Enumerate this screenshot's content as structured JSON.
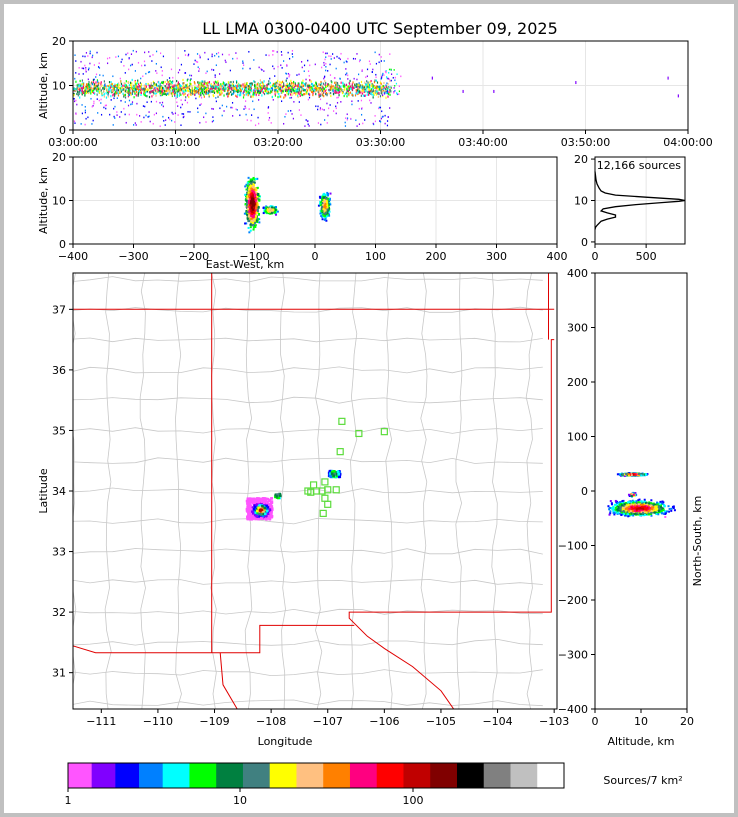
{
  "title": "LL LMA 0300-0400 UTC September 09, 2025",
  "colorbar": {
    "label": "Sources/7 km²",
    "ticks": [
      "1",
      "10",
      "100"
    ],
    "colors": [
      "#ff55ff",
      "#8000ff",
      "#0000ff",
      "#0080ff",
      "#00ffff",
      "#00ff00",
      "#008040",
      "#408080",
      "#ffff00",
      "#ffc080",
      "#ff8000",
      "#ff0080",
      "#ff0000",
      "#c00000",
      "#800000",
      "#000000",
      "#808080",
      "#c0c0c0",
      "#ffffff"
    ]
  },
  "panels": {
    "time_height": {
      "ylabel": "Altitude, km",
      "yticks": [
        "0",
        "10",
        "20"
      ],
      "xticks": [
        "03:00:00",
        "03:10:00",
        "03:20:00",
        "03:30:00",
        "03:40:00",
        "03:50:00",
        "04:00:00"
      ]
    },
    "ew_height": {
      "ylabel": "Altitude, km",
      "xlabel": "East-West, km",
      "yticks": [
        "0",
        "10",
        "20"
      ],
      "xticks": [
        "−400",
        "−300",
        "−200",
        "−100",
        "0",
        "100",
        "200",
        "300",
        "400"
      ]
    },
    "histogram": {
      "annotation": "12,166 sources",
      "yticks": [
        "0",
        "10",
        "20"
      ],
      "xticks": [
        "0",
        "500"
      ]
    },
    "map": {
      "ylabel": "Latitude",
      "xlabel": "Longitude",
      "yticks": [
        "31",
        "32",
        "33",
        "34",
        "35",
        "36",
        "37"
      ],
      "xticks": [
        "−111",
        "−110",
        "−109",
        "−108",
        "−107",
        "−106",
        "−105",
        "−104",
        "−103"
      ]
    },
    "ns_height": {
      "ylabel": "North-South, km",
      "xlabel": "Altitude, km",
      "yticks": [
        "400",
        "300",
        "200",
        "100",
        "0",
        "−100",
        "−200",
        "−300",
        "−400"
      ],
      "xticks": [
        "0",
        "10",
        "20"
      ]
    }
  },
  "chart_data": [
    {
      "type": "scatter",
      "name": "time-height",
      "xlabel": "",
      "ylabel": "Altitude, km",
      "xlim": [
        "03:00:00",
        "04:00:00"
      ],
      "ylim": [
        0,
        20
      ],
      "active_time_span": [
        "03:00:00",
        "03:31:00"
      ],
      "core_altitude_km": [
        7,
        12
      ],
      "isolated_sources": [
        [
          "03:35:00",
          12
        ],
        [
          "03:38:00",
          9
        ],
        [
          "03:41:00",
          9
        ],
        [
          "03:49:00",
          11
        ],
        [
          "03:58:00",
          12
        ],
        [
          "03:59:00",
          8
        ]
      ]
    },
    {
      "type": "heatmap",
      "name": "east-west vs altitude",
      "xlabel": "East-West, km",
      "ylabel": "Altitude, km",
      "xlim": [
        -400,
        400
      ],
      "ylim": [
        0,
        20
      ],
      "clusters": [
        {
          "x_range": [
            -125,
            -90
          ],
          "alt_range": [
            1,
            19
          ],
          "peak": [
            -105,
            9.5
          ]
        },
        {
          "x_range": [
            -90,
            -55
          ],
          "alt_range": [
            6,
            9
          ],
          "peak": [
            -75,
            8
          ]
        },
        {
          "x_range": [
            3,
            30
          ],
          "alt_range": [
            3,
            12
          ],
          "peak": [
            15,
            9
          ]
        }
      ]
    },
    {
      "type": "line",
      "name": "altitude histogram",
      "annotation": "12,166 sources",
      "xlim": [
        0,
        880
      ],
      "ylim": [
        0,
        21
      ],
      "x": [
        0,
        5,
        20,
        60,
        120,
        200,
        200,
        120,
        60,
        80,
        200,
        400,
        650,
        820,
        880,
        820,
        500,
        200,
        100,
        60,
        40,
        20,
        10,
        5,
        0
      ],
      "y": [
        3,
        3.5,
        4,
        5,
        5.5,
        6,
        6.5,
        7,
        7.5,
        8,
        8.5,
        9,
        9.5,
        9.8,
        10,
        10.3,
        10.8,
        11.3,
        11.8,
        12.3,
        13,
        14,
        15,
        16,
        17
      ]
    },
    {
      "type": "heatmap",
      "name": "plan view map",
      "xlabel": "Longitude",
      "ylabel": "Latitude",
      "xlim": [
        -111.5,
        -102.95
      ],
      "ylim": [
        30.4,
        37.6
      ],
      "clusters": [
        {
          "lon_range": [
            -108.45,
            -108.0
          ],
          "lat_range": [
            33.55,
            33.9
          ],
          "peak": [
            -108.2,
            33.7
          ]
        },
        {
          "lon_range": [
            -107.0,
            -106.8
          ],
          "lat_range": [
            34.25,
            34.35
          ],
          "peak": [
            -106.9,
            34.3
          ]
        },
        {
          "lon_range": [
            -107.95,
            -107.85
          ],
          "lat_range": [
            33.9,
            33.98
          ],
          "peak": [
            -107.9,
            33.95
          ]
        }
      ],
      "stations": [
        [
          -106.75,
          35.15
        ],
        [
          -106.45,
          34.95
        ],
        [
          -106.0,
          34.98
        ],
        [
          -106.78,
          34.65
        ],
        [
          -107.25,
          34.1
        ],
        [
          -107.35,
          34.0
        ],
        [
          -107.3,
          33.98
        ],
        [
          -107.2,
          34.0
        ],
        [
          -107.1,
          34.0
        ],
        [
          -107.0,
          34.02
        ],
        [
          -106.85,
          34.02
        ],
        [
          -107.05,
          34.15
        ],
        [
          -107.05,
          33.88
        ],
        [
          -107.0,
          33.78
        ],
        [
          -107.08,
          33.63
        ]
      ]
    },
    {
      "type": "heatmap",
      "name": "altitude vs north-south",
      "xlabel": "Altitude, km",
      "ylabel": "North-South, km",
      "xlim": [
        0,
        20
      ],
      "ylim": [
        -400,
        400
      ],
      "clusters": [
        {
          "alt_range": [
            3,
            12
          ],
          "y_range": [
            28,
            35
          ],
          "peak": [
            8,
            32
          ]
        },
        {
          "alt_range": [
            1,
            20
          ],
          "y_range": [
            -50,
            -10
          ],
          "peak": [
            9.5,
            -30
          ]
        },
        {
          "alt_range": [
            7,
            9
          ],
          "y_range": [
            -10,
            0
          ],
          "peak": [
            8,
            -5
          ]
        }
      ]
    }
  ]
}
